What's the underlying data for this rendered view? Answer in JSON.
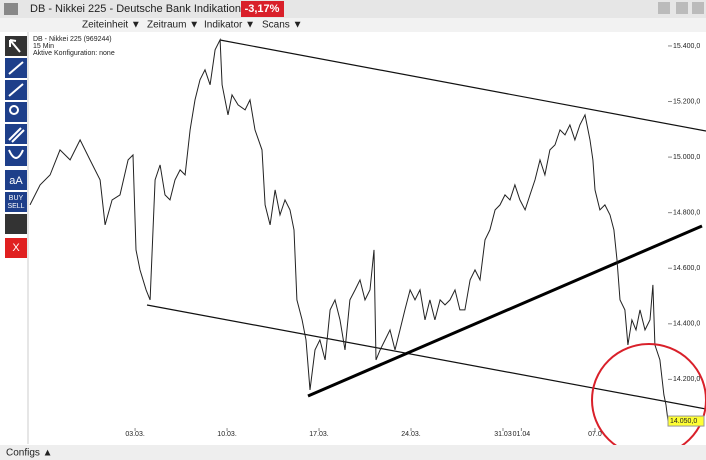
{
  "window": {
    "title": "DB - Nikkei 225 - Deutsche Bank Indikation",
    "change": "-3,17%"
  },
  "menu": [
    "Zeiteinheit ▼",
    "Zeitraum ▼",
    "Indikator ▼",
    "Scans ▼"
  ],
  "info": [
    "DB - Nikkei 225 (969244)",
    "15 Min",
    "Aktive Konfiguration: none"
  ],
  "toolbar": [
    "aA",
    "BUY",
    "SELL",
    "X"
  ],
  "footer": "Configs ▲",
  "chart_data": {
    "type": "line",
    "color": "#222222",
    "x": [
      -5.71,
      -5.16,
      -4.62,
      -4.08,
      -3.53,
      -2.99,
      -2.45,
      -1.9,
      -1.63,
      -1.25,
      -0.82,
      -0.38,
      -0.11,
      0.05,
      0.27,
      0.6,
      0.82,
      1.09,
      1.36,
      1.63,
      1.9,
      2.17,
      2.45,
      2.72,
      2.99,
      3.26,
      3.53,
      3.8,
      4.08,
      4.35,
      4.62,
      4.73,
      5.05,
      5.27,
      5.6,
      5.98,
      6.25,
      6.52,
      6.9,
      7.07,
      7.34,
      7.61,
      7.88,
      8.15,
      8.42,
      8.64,
      8.8,
      9.08,
      9.29,
      9.51,
      9.78,
      10.05,
      10.33,
      10.6,
      10.87,
      11.14,
      11.41,
      11.68,
      11.96,
      12.23,
      12.5,
      12.77,
      12.99,
      13.1,
      13.32,
      13.59,
      13.86,
      14.13,
      14.4,
      14.67,
      14.95,
      15.22,
      15.49,
      15.76,
      16.03,
      16.3,
      16.58,
      16.85,
      17.12,
      17.39,
      17.66,
      17.93,
      18.21,
      18.48,
      18.75,
      19.02,
      19.29,
      19.57,
      19.84,
      20.11,
      20.38,
      20.65,
      20.92,
      21.2,
      21.47,
      21.74,
      22.01,
      22.28,
      22.55,
      22.83,
      23.1,
      23.37,
      23.64,
      23.91,
      24.18,
      24.46,
      24.73,
      24.89,
      25.0,
      25.27,
      25.54,
      25.82,
      26.03,
      26.2,
      26.36,
      26.63,
      26.79,
      27.01,
      27.23,
      27.45,
      27.72,
      27.99,
      28.15,
      28.26,
      28.53,
      28.75,
      28.86,
      28.97
    ],
    "values": [
      14828,
      14900,
      14936,
      15026,
      14990,
      15062,
      14990,
      14918,
      14756,
      14846,
      14864,
      14990,
      15008,
      14666,
      14594,
      14522,
      14486,
      14918,
      14972,
      14864,
      14846,
      14918,
      14954,
      14936,
      15098,
      15206,
      15278,
      15314,
      15260,
      15386,
      15422,
      15260,
      15152,
      15224,
      15188,
      15170,
      15206,
      15098,
      15026,
      14828,
      14756,
      14882,
      14792,
      14846,
      14810,
      14738,
      14486,
      14414,
      14342,
      14162,
      14306,
      14342,
      14270,
      14450,
      14486,
      14414,
      14306,
      14486,
      14522,
      14558,
      14486,
      14522,
      14666,
      14270,
      14306,
      14342,
      14378,
      14306,
      14378,
      14450,
      14522,
      14486,
      14522,
      14414,
      14486,
      14414,
      14486,
      14468,
      14486,
      14522,
      14450,
      14450,
      14558,
      14594,
      14558,
      14702,
      14738,
      14810,
      14828,
      14864,
      14846,
      14900,
      14846,
      14810,
      14864,
      14918,
      14990,
      14936,
      15026,
      15044,
      15098,
      15080,
      15116,
      15062,
      15116,
      15152,
      15062,
      14990,
      14882,
      14810,
      14828,
      14792,
      14738,
      14630,
      14486,
      14450,
      14324,
      14414,
      14378,
      14450,
      14378,
      14414,
      14540,
      14324,
      14270,
      14144,
      14108,
      14050
    ],
    "last_price_label": "14.050,0",
    "xlim": [
      -5.82,
      30.71
    ],
    "ylim": [
      14025,
      15443
    ],
    "xticks": [
      {
        "value": 0,
        "label": "03.03."
      },
      {
        "value": 5,
        "label": "10.03."
      },
      {
        "value": 10,
        "label": "17.03."
      },
      {
        "value": 15,
        "label": "24.03."
      },
      {
        "value": 20,
        "label": "31.03"
      },
      {
        "value": 21,
        "label": "01.04"
      },
      {
        "value": 25,
        "label": "07.0"
      }
    ],
    "yticks": [
      {
        "value": 15400,
        "label": "15.400,0"
      },
      {
        "value": 15200,
        "label": "15.200,0"
      },
      {
        "value": 15000,
        "label": "15.000,0"
      },
      {
        "value": 14800,
        "label": "14.800,0"
      },
      {
        "value": 14600,
        "label": "14.600,0"
      },
      {
        "value": 14400,
        "label": "14.400,0"
      },
      {
        "value": 14200,
        "label": "14.200,0"
      }
    ],
    "grid": false
  }
}
